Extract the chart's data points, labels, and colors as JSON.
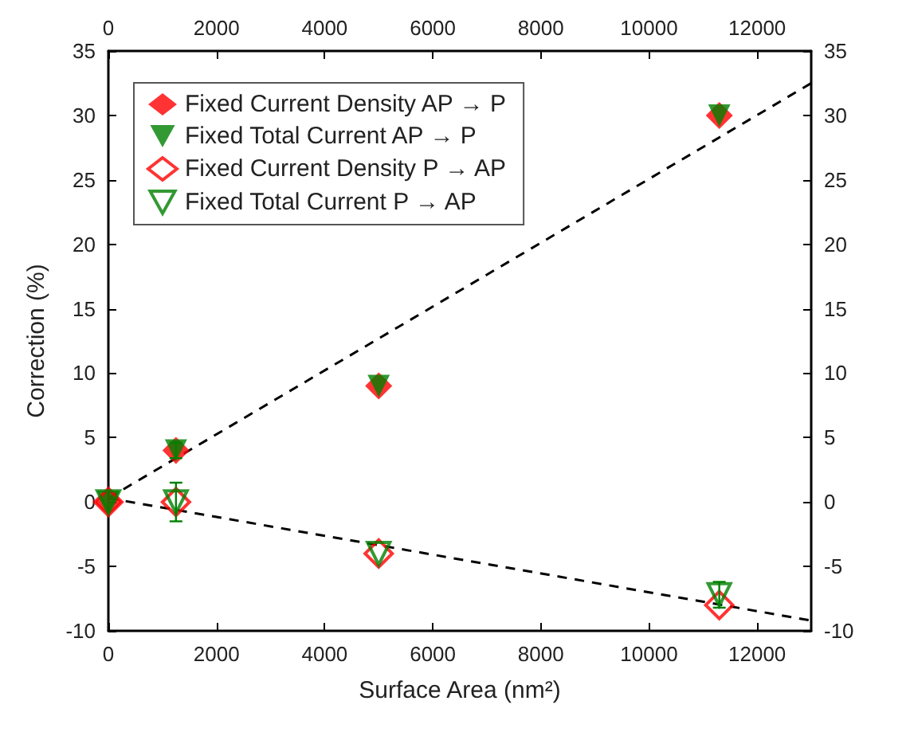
{
  "chart_data": {
    "type": "scatter",
    "xlabel": "Surface Area (nm²)",
    "ylabel": "Correction (%)",
    "xlim": [
      0,
      13000
    ],
    "xticks": [
      0,
      2000,
      4000,
      6000,
      8000,
      10000,
      12000
    ],
    "x2lim": [
      0,
      13000
    ],
    "x2ticks": [
      0,
      2000,
      4000,
      6000,
      8000,
      10000,
      12000
    ],
    "ylim": [
      -10,
      35
    ],
    "yticks": [
      -10,
      -5,
      0,
      5,
      10,
      15,
      20,
      25,
      30,
      35
    ],
    "y2lim": [
      -10,
      35
    ],
    "y2ticks": [
      -10,
      -5,
      0,
      5,
      10,
      15,
      20,
      25,
      30,
      35
    ],
    "grid": false,
    "legend": "top left",
    "series": [
      {
        "name": "Fixed Current Density AP → P",
        "color": "#ff0000",
        "marker": "diamond",
        "x": [
          0,
          1250,
          5000,
          11300
        ],
        "values": [
          0,
          4,
          9,
          30
        ]
      },
      {
        "name": "Fixed Total Current AP → P",
        "color": "#008000",
        "marker": "triangle",
        "x": [
          0,
          1250,
          5000,
          11300
        ],
        "values": [
          0,
          4,
          9,
          30
        ],
        "errors": [
          null,
          0.6,
          null,
          null
        ]
      },
      {
        "name": "Fixed Current Density P → AP",
        "color": "#ff0000",
        "marker": "diamond",
        "x": [
          0,
          1250,
          5000,
          11300
        ],
        "values": [
          0,
          0,
          -4,
          -8
        ]
      },
      {
        "name": "Fixed Total Current P → AP",
        "color": "#008000",
        "marker": "triangle",
        "x": [
          0,
          1250,
          5000,
          11300
        ],
        "values": [
          0,
          0,
          -4,
          -7.2
        ],
        "errors": [
          null,
          1.5,
          null,
          1
        ]
      },
      {
        "type": "line",
        "color": "#000000",
        "marker": "none",
        "line_style": "dashed",
        "x": [
          0,
          13000
        ],
        "values": [
          0.3,
          32.5
        ]
      },
      {
        "type": "line",
        "color": "#000000",
        "marker": "none",
        "line_style": "dashed",
        "x": [
          0,
          13000
        ],
        "values": [
          0.3,
          -9.2
        ]
      }
    ]
  }
}
